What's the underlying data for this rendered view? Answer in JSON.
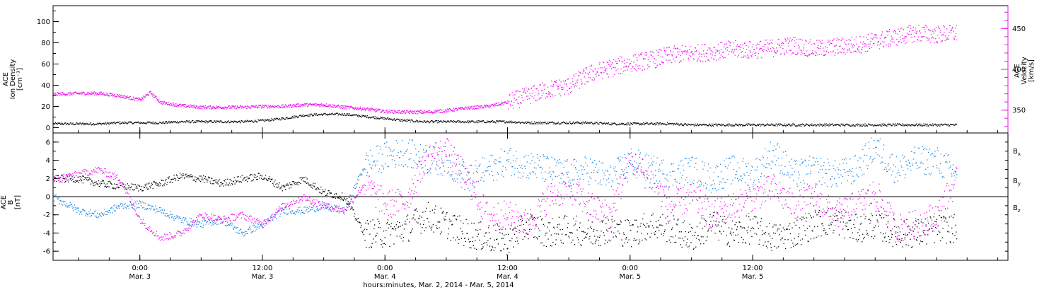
{
  "colors": {
    "black": "#000000",
    "magenta": "#ee11ee",
    "blue": "#1f86e0",
    "frame": "#000000"
  },
  "chart_data": [
    {
      "type": "scatter",
      "panel": "top",
      "ylabel_left": [
        "ACE",
        "Ion Density",
        "[cm⁻³]"
      ],
      "ylabel_right": [
        "ACE",
        "Velocity",
        "[km/s]"
      ],
      "xlim": [
        -8.5,
        85
      ],
      "ylim_left": [
        -5,
        115
      ],
      "ylim_right": [
        322,
        478
      ],
      "yticks_left": [
        "0",
        "20",
        "40",
        "60",
        "80",
        "100"
      ],
      "yticks_right": [
        "350",
        "400",
        "450"
      ],
      "series": [
        {
          "axis": "left",
          "color": "#000000",
          "x": [
            -8.5,
            -6,
            -4,
            -2,
            0,
            2,
            4,
            6,
            8,
            10,
            12,
            14,
            16,
            18,
            20,
            22,
            24,
            26,
            28,
            30,
            32,
            34,
            36,
            38,
            40,
            42,
            44,
            46,
            48,
            50,
            52,
            54,
            56,
            58,
            60,
            62,
            64,
            66,
            68,
            70,
            72,
            74,
            76,
            78,
            80
          ],
          "y": [
            4,
            4,
            4,
            5,
            5,
            5,
            6,
            6,
            6,
            6,
            7,
            9,
            12,
            13,
            13,
            11,
            9,
            7,
            6,
            6,
            6,
            6,
            6,
            5,
            5,
            5,
            5,
            4,
            4,
            4,
            4,
            3,
            3,
            3,
            3,
            3,
            3,
            3,
            3,
            3,
            3,
            3,
            3,
            3,
            3
          ]
        },
        {
          "axis": "right",
          "color": "#ee11ee",
          "x": [
            -8.5,
            -6,
            -4,
            -2,
            0,
            1,
            2,
            4,
            6,
            8,
            10,
            12,
            14,
            16,
            18,
            20,
            22,
            24,
            26,
            28,
            30,
            32,
            34,
            36,
            38,
            40,
            42,
            44,
            46,
            48,
            50,
            52,
            54,
            56,
            58,
            60,
            62,
            64,
            66,
            68,
            70,
            72,
            74,
            76,
            78,
            80
          ],
          "y": [
            370,
            371,
            371,
            368,
            363,
            372,
            360,
            356,
            354,
            354,
            354,
            355,
            355,
            357,
            357,
            354,
            352,
            349,
            348,
            348,
            350,
            353,
            355,
            360,
            368,
            376,
            380,
            395,
            402,
            408,
            412,
            418,
            420,
            422,
            425,
            424,
            427,
            430,
            425,
            428,
            430,
            435,
            440,
            445,
            443,
            445
          ]
        }
      ]
    },
    {
      "type": "scatter",
      "panel": "bottom",
      "ylabel_left": [
        "ACE",
        "B",
        "[nT]"
      ],
      "xlim": [
        -8.5,
        85
      ],
      "ylim": [
        -7,
        7
      ],
      "yticks": [
        "-6",
        "-4",
        "-2",
        "0",
        "2",
        "4",
        "6"
      ],
      "xtick_labels": [
        [
          "0:00",
          "Mar. 3"
        ],
        [
          "12:00",
          "Mar. 3"
        ],
        [
          "0:00",
          "Mar. 4"
        ],
        [
          "12:00",
          "Mar. 4"
        ],
        [
          "0:00",
          "Mar. 5"
        ],
        [
          "12:00",
          "Mar. 5"
        ]
      ],
      "xticks": [
        0,
        12,
        24,
        36,
        48,
        60
      ],
      "xlabel": "hours:minutes, Mar. 2, 2014 - Mar. 5, 2014",
      "legend": [
        "Bx",
        "By",
        "Bz"
      ],
      "series": [
        {
          "name": "Bx",
          "color": "#000000",
          "x": [
            -8.5,
            -6,
            -4,
            -2,
            0,
            2,
            4,
            6,
            8,
            10,
            12,
            14,
            16,
            18,
            20,
            22,
            24,
            26,
            28,
            30,
            32,
            34,
            36,
            38,
            40,
            42,
            44,
            46,
            48,
            50,
            52,
            54,
            56,
            58,
            60,
            62,
            64,
            66,
            68,
            70,
            72,
            74,
            76,
            78,
            80
          ],
          "y": [
            2,
            2,
            1.5,
            1.2,
            1,
            1.5,
            2.3,
            2,
            1.5,
            2,
            2.3,
            1,
            2,
            0.5,
            0,
            -4,
            -4,
            -3.5,
            -2,
            -3,
            -4,
            -4.5,
            -4.8,
            -3,
            -4,
            -3.5,
            -4,
            -3.5,
            -4,
            -3,
            -3.5,
            -4.5,
            -3,
            -4,
            -3.5,
            -4.5,
            -4,
            -3,
            -2.5,
            -3.5,
            -3,
            -4,
            -4,
            -3.5,
            -3.5
          ]
        },
        {
          "name": "By",
          "color": "#1f86e0",
          "x": [
            -8.5,
            -6,
            -4,
            -2,
            0,
            2,
            4,
            6,
            8,
            10,
            12,
            14,
            16,
            18,
            20,
            22,
            24,
            26,
            28,
            30,
            32,
            34,
            36,
            38,
            40,
            42,
            44,
            46,
            48,
            50,
            52,
            54,
            56,
            58,
            60,
            62,
            64,
            66,
            68,
            70,
            72,
            74,
            76,
            78,
            80
          ],
          "y": [
            0,
            -1.5,
            -2,
            -1,
            -0.8,
            -1.5,
            -2.5,
            -3,
            -2.5,
            -4,
            -3,
            -1.5,
            -1.5,
            -1,
            -1.5,
            3.5,
            4.5,
            5,
            4,
            4,
            2,
            3,
            4,
            3.5,
            3,
            2.5,
            3,
            2,
            4,
            3,
            2.5,
            3,
            2,
            3,
            2.5,
            5,
            2.5,
            3,
            2.5,
            3,
            5.5,
            3,
            4,
            4,
            2.5
          ]
        },
        {
          "name": "Bz",
          "color": "#ee11ee",
          "x": [
            -8.5,
            -6,
            -4,
            -2,
            0,
            2,
            4,
            6,
            8,
            10,
            12,
            14,
            16,
            18,
            20,
            22,
            24,
            26,
            28,
            30,
            32,
            34,
            36,
            38,
            40,
            42,
            44,
            46,
            48,
            50,
            52,
            54,
            56,
            58,
            60,
            62,
            64,
            66,
            68,
            70,
            72,
            74,
            76,
            78,
            80
          ],
          "y": [
            2,
            2.5,
            3,
            2,
            -2.5,
            -4.5,
            -4,
            -2,
            -2.5,
            -2,
            -3,
            -1,
            0,
            -1,
            -1.5,
            1.5,
            -0.8,
            -0.5,
            4.5,
            5,
            2,
            -2,
            -2,
            -3,
            0,
            1,
            -1,
            -2,
            4,
            2,
            -1,
            0,
            -2,
            -1,
            0,
            1,
            -1,
            0,
            -2,
            -1,
            0.5,
            -3.5,
            -3,
            -2,
            2
          ]
        }
      ]
    }
  ]
}
